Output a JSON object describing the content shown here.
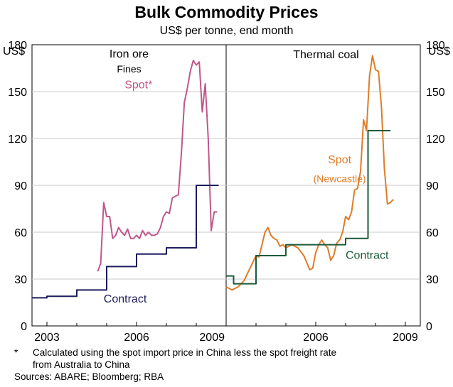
{
  "chart_data": {
    "type": "line",
    "title": "Bulk Commodity Prices",
    "subtitle": "US$ per tonne, end month",
    "ylabel_left": "US$",
    "ylabel_right": "US$",
    "ylim": [
      0,
      180
    ],
    "yticks": [
      0,
      30,
      60,
      90,
      120,
      150,
      180
    ],
    "panels": [
      {
        "title": "Iron ore",
        "subtitle": "Fines",
        "xlim": [
          2002.5,
          2009.0
        ],
        "xticks": [
          {
            "value": 2003,
            "label": "2003"
          },
          {
            "value": 2006,
            "label": "2006"
          },
          {
            "value": 2009,
            "label": "2009"
          }
        ],
        "series": [
          {
            "name": "Spot*",
            "color": "#c0578a",
            "step": false,
            "x": [
              2004.7,
              2004.8,
              2004.9,
              2005.0,
              2005.1,
              2005.2,
              2005.3,
              2005.4,
              2005.5,
              2005.6,
              2005.7,
              2005.8,
              2005.9,
              2006.0,
              2006.1,
              2006.2,
              2006.3,
              2006.4,
              2006.5,
              2006.6,
              2006.7,
              2006.8,
              2006.9,
              2007.0,
              2007.1,
              2007.2,
              2007.3,
              2007.4,
              2007.5,
              2007.6,
              2007.7,
              2007.8,
              2007.9,
              2008.0,
              2008.1,
              2008.2,
              2008.3,
              2008.4,
              2008.5,
              2008.6,
              2008.7
            ],
            "values": [
              35,
              40,
              79,
              70,
              70,
              56,
              58,
              63,
              60,
              58,
              62,
              56,
              56,
              58,
              56,
              61,
              58,
              60,
              58,
              58,
              59,
              63,
              70,
              73,
              72,
              82,
              83,
              84,
              110,
              143,
              152,
              163,
              170,
              167,
              169,
              137,
              155,
              120,
              61,
              73,
              73
            ]
          },
          {
            "name": "Contract",
            "color": "#1c1c5e",
            "step": true,
            "x": [
              2002.5,
              2003.0,
              2003.5,
              2004.0,
              2004.5,
              2005.0,
              2006.0,
              2007.0,
              2008.0,
              2008.75
            ],
            "values": [
              18,
              19,
              19,
              23,
              23,
              38,
              46,
              50,
              90,
              90
            ]
          }
        ]
      },
      {
        "title": "Thermal coal",
        "xlim": [
          2003.0,
          2009.5
        ],
        "xticks": [
          {
            "value": 2006,
            "label": "2006"
          },
          {
            "value": 2009,
            "label": "2009"
          }
        ],
        "series": [
          {
            "name": "Spot",
            "label": "(Newcastle)",
            "color": "#e07c27",
            "step": false,
            "x": [
              2003.0,
              2003.2,
              2003.4,
              2003.6,
              2003.8,
              2004.0,
              2004.1,
              2004.2,
              2004.3,
              2004.4,
              2004.5,
              2004.6,
              2004.7,
              2004.8,
              2004.9,
              2005.0,
              2005.2,
              2005.4,
              2005.6,
              2005.8,
              2005.9,
              2006.0,
              2006.1,
              2006.2,
              2006.3,
              2006.4,
              2006.5,
              2006.6,
              2006.7,
              2006.8,
              2006.9,
              2007.0,
              2007.1,
              2007.2,
              2007.3,
              2007.4,
              2007.5,
              2007.6,
              2007.7,
              2007.8,
              2007.9,
              2008.0,
              2008.1,
              2008.2,
              2008.3,
              2008.4,
              2008.5,
              2008.6
            ],
            "values": [
              25,
              23,
              25,
              29,
              37,
              45,
              44,
              52,
              60,
              63,
              58,
              56,
              55,
              51,
              52,
              50,
              52,
              50,
              45,
              36,
              37,
              47,
              52,
              55,
              52,
              50,
              42,
              45,
              53,
              55,
              60,
              70,
              68,
              73,
              87,
              88,
              99,
              132,
              125,
              160,
              173,
              164,
              163,
              140,
              100,
              78,
              79,
              81
            ]
          },
          {
            "name": "Contract",
            "color": "#1c5a3a",
            "step": true,
            "x": [
              2003.0,
              2003.25,
              2004.0,
              2005.0,
              2006.0,
              2007.0,
              2007.75,
              2008.5
            ],
            "values": [
              32,
              27,
              45,
              52,
              52,
              56,
              125,
              125
            ]
          }
        ]
      }
    ]
  },
  "footnote": {
    "marker": "*",
    "lines": [
      "Calculated using the spot import price in China less the spot freight rate",
      "from Australia to China"
    ]
  },
  "sources": "Sources: ABARE; Bloomberg; RBA"
}
